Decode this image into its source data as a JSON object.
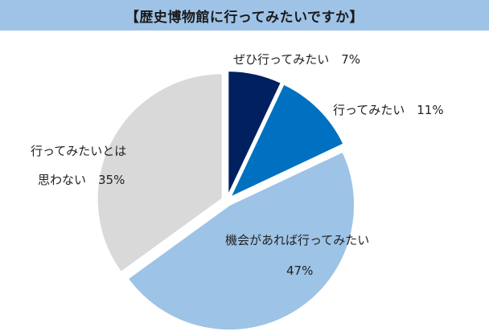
{
  "chart_data": {
    "type": "pie",
    "title": "【歴史博物館に行ってみたいですか】",
    "slices": [
      {
        "label": "ぜひ行ってみたい",
        "value": 7,
        "value_text": "7%",
        "color": "#002060"
      },
      {
        "label": "行ってみたい",
        "value": 11,
        "value_text": "11%",
        "color": "#0070c0"
      },
      {
        "label": "機会があれば行ってみたい",
        "value": 47,
        "value_text": "47%",
        "color": "#9dc3e6"
      },
      {
        "label": "行ってみたいとは思わない",
        "value": 35,
        "value_text": "35%",
        "color": "#d9d9d9"
      }
    ],
    "labels": {
      "s0": {
        "line1": "ぜひ行ってみたい　7%"
      },
      "s1": {
        "line1": "行ってみたい　11%"
      },
      "s2": {
        "line1": "機会があれば行ってみたい",
        "line2": "47%"
      },
      "s3": {
        "line1": "行ってみたいとは",
        "line2": "思わない　35%"
      }
    }
  }
}
